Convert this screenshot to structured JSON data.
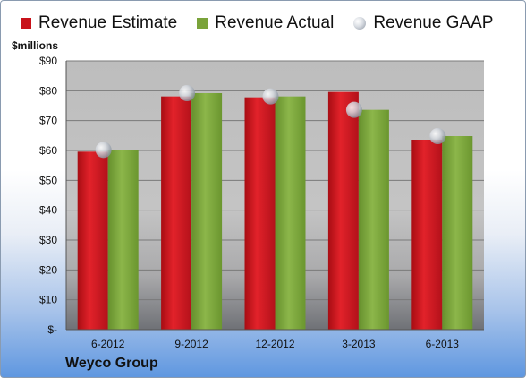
{
  "legend": {
    "estimate": "Revenue Estimate",
    "actual": "Revenue Actual",
    "gaap": "Revenue GAAP"
  },
  "unit_label": "$millions",
  "company": "Weyco Group",
  "colors": {
    "estimate": "#c8121a",
    "actual": "#7aa33a",
    "gaap": "#c9ced6",
    "plot_bg": "#c0c0c0"
  },
  "chart_data": {
    "type": "bar",
    "title": "",
    "xlabel": "",
    "ylabel": "$millions",
    "categories": [
      "6-2012",
      "9-2012",
      "12-2012",
      "3-2013",
      "6-2013"
    ],
    "series": [
      {
        "name": "Revenue Estimate",
        "values": [
          59.6,
          78.1,
          77.8,
          79.6,
          63.6
        ]
      },
      {
        "name": "Revenue Actual",
        "values": [
          60.2,
          79.2,
          78.1,
          73.6,
          64.8
        ]
      },
      {
        "name": "Revenue GAAP",
        "values": [
          60.2,
          79.2,
          78.1,
          73.6,
          64.8
        ]
      }
    ],
    "ylim": [
      0,
      90
    ],
    "yticks": [
      "$-",
      "$10",
      "$20",
      "$30",
      "$40",
      "$50",
      "$60",
      "$70",
      "$80",
      "$90"
    ],
    "grid": true,
    "legend_position": "top"
  }
}
